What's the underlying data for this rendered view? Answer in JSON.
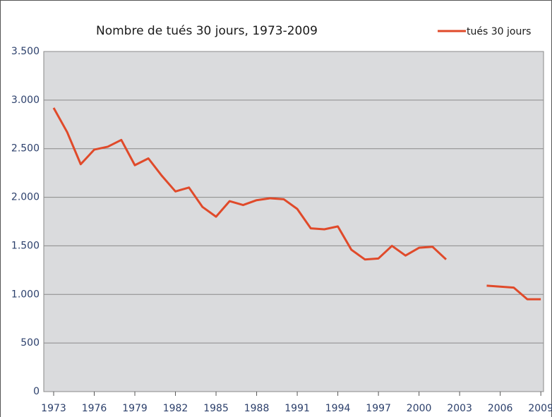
{
  "chart_data": {
    "type": "line",
    "title": "Nombre de tués 30 jours, 1973-2009",
    "x": [
      1973,
      1974,
      1975,
      1976,
      1977,
      1978,
      1979,
      1980,
      1981,
      1982,
      1983,
      1984,
      1985,
      1986,
      1987,
      1988,
      1989,
      1990,
      1991,
      1992,
      1993,
      1994,
      1995,
      1996,
      1997,
      1998,
      1999,
      2000,
      2001,
      2002,
      2003,
      2004,
      2005,
      2006,
      2007,
      2008,
      2009
    ],
    "series": [
      {
        "name": "tués 30 jours",
        "color": "#e04a2a",
        "values": [
          2920,
          2670,
          2340,
          2490,
          2520,
          2590,
          2330,
          2400,
          2220,
          2060,
          2100,
          1900,
          1800,
          1960,
          1920,
          1970,
          1990,
          1980,
          1880,
          1680,
          1670,
          1700,
          1460,
          1360,
          1370,
          1500,
          1400,
          1480,
          1490,
          1360,
          null,
          null,
          1090,
          1080,
          1070,
          950,
          950
        ]
      }
    ],
    "xlim": [
      1972.27,
      2009.2
    ],
    "xticks": [
      1973,
      1976,
      1979,
      1982,
      1985,
      1988,
      1991,
      1994,
      1997,
      2000,
      2003,
      2006,
      2009
    ],
    "ylim": [
      0,
      3500
    ],
    "yticks": [
      0,
      500,
      {
        "value": 1000,
        "label": "1.000"
      },
      {
        "value": 1500,
        "label": "1.500"
      },
      {
        "value": 2000,
        "label": "2.000"
      },
      {
        "value": 2500,
        "label": "2.500"
      },
      {
        "value": 3000,
        "label": "3.000"
      },
      {
        "value": 3500,
        "label": "3.500"
      }
    ],
    "grid": true,
    "legend": "top-right"
  }
}
